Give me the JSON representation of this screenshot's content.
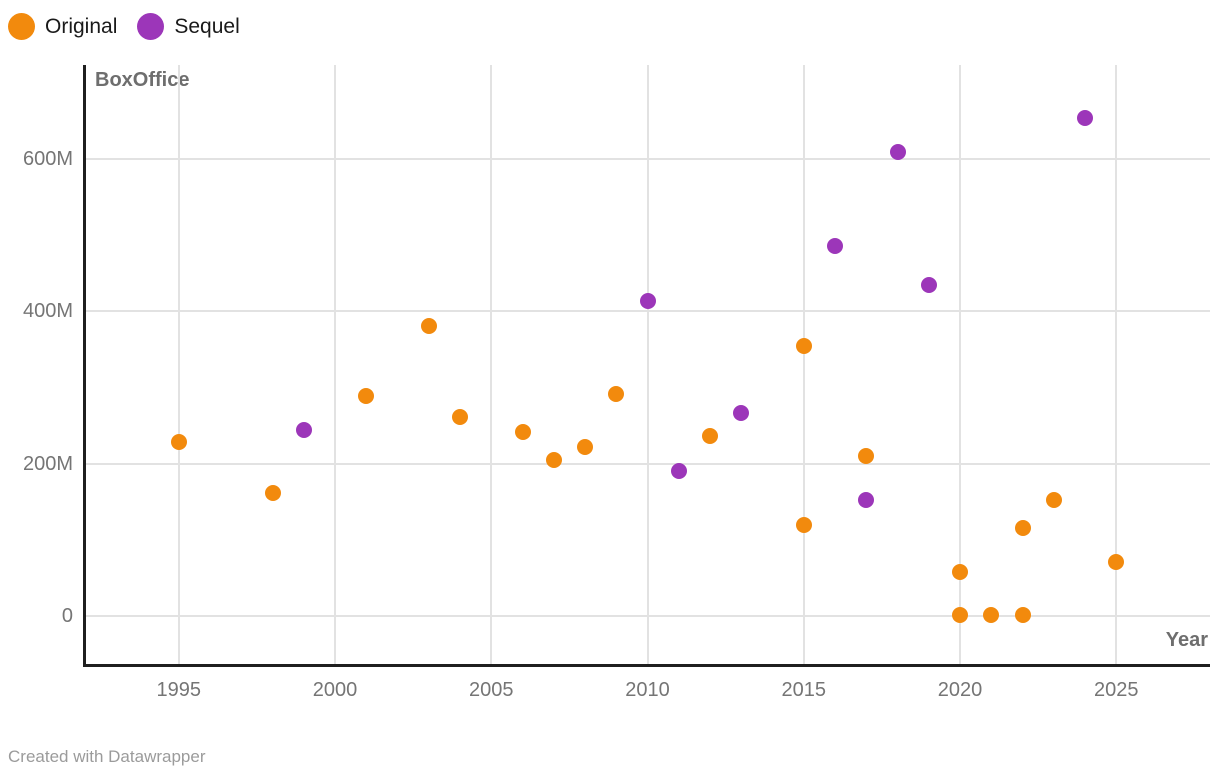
{
  "legend": {
    "items": [
      {
        "label": "Original",
        "color": "#F28A0D"
      },
      {
        "label": "Sequel",
        "color": "#9C36B9"
      }
    ]
  },
  "footer": {
    "text": "Created with Datawrapper"
  },
  "chart_data": {
    "type": "scatter",
    "title": "",
    "xlabel": "Year",
    "ylabel": "BoxOffice",
    "y_unit": "M",
    "grid": true,
    "legend_position": "top-left",
    "xlim": [
      1992,
      2028
    ],
    "ylim": [
      -64,
      723
    ],
    "x_ticks": [
      1995,
      2000,
      2005,
      2010,
      2015,
      2020,
      2025
    ],
    "y_ticks": [
      {
        "value": 0,
        "label": "0"
      },
      {
        "value": 200,
        "label": "200M"
      },
      {
        "value": 400,
        "label": "400M"
      },
      {
        "value": 600,
        "label": "600M"
      }
    ],
    "series": [
      {
        "name": "Original",
        "color": "#F28A0D",
        "points": [
          [
            1995,
            228
          ],
          [
            1998,
            161
          ],
          [
            2001,
            289
          ],
          [
            2003,
            380
          ],
          [
            2004,
            261
          ],
          [
            2006,
            242
          ],
          [
            2007,
            205
          ],
          [
            2008,
            222
          ],
          [
            2009,
            292
          ],
          [
            2012,
            236
          ],
          [
            2015,
            355
          ],
          [
            2015,
            120
          ],
          [
            2017,
            210
          ],
          [
            2020,
            58
          ],
          [
            2020,
            2
          ],
          [
            2021,
            2
          ],
          [
            2022,
            2
          ],
          [
            2022,
            116
          ],
          [
            2023,
            153
          ],
          [
            2025,
            71
          ]
        ]
      },
      {
        "name": "Sequel",
        "color": "#9C36B9",
        "points": [
          [
            1999,
            244
          ],
          [
            2010,
            414
          ],
          [
            2011,
            190
          ],
          [
            2013,
            267
          ],
          [
            2016,
            486
          ],
          [
            2017,
            152
          ],
          [
            2018,
            609
          ],
          [
            2019,
            434
          ],
          [
            2024,
            654
          ]
        ]
      }
    ]
  }
}
